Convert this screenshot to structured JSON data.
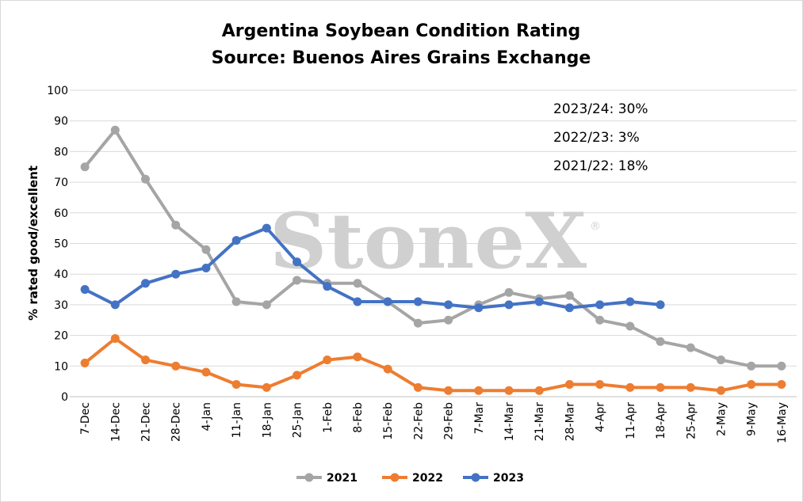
{
  "watermark": {
    "text": "StoneX",
    "mark": "®"
  },
  "annotations": [
    "2023/24: 30%",
    "2022/23: 3%",
    "2021/22: 18%"
  ],
  "chart_data": {
    "type": "line",
    "title": "Argentina Soybean Condition Rating",
    "subtitle": "Source: Buenos Aires Grains Exchange",
    "xlabel": "",
    "ylabel": "% rated good/excellent",
    "ylim": [
      0,
      100
    ],
    "yticks": [
      0,
      10,
      20,
      30,
      40,
      50,
      60,
      70,
      80,
      90,
      100
    ],
    "grid": true,
    "legend": "bottom",
    "categories": [
      "7-Dec",
      "14-Dec",
      "21-Dec",
      "28-Dec",
      "4-Jan",
      "11-Jan",
      "18-Jan",
      "25-Jan",
      "1-Feb",
      "8-Feb",
      "15-Feb",
      "22-Feb",
      "29-Feb",
      "7-Mar",
      "14-Mar",
      "21-Mar",
      "28-Mar",
      "4-Apr",
      "11-Apr",
      "18-Apr",
      "25-Apr",
      "2-May",
      "9-May",
      "16-May"
    ],
    "series": [
      {
        "name": "2021",
        "color": "#a5a5a5",
        "values": [
          75,
          87,
          71,
          56,
          48,
          31,
          30,
          38,
          37,
          37,
          31,
          24,
          25,
          30,
          34,
          32,
          33,
          25,
          23,
          18,
          16,
          12,
          10,
          10
        ]
      },
      {
        "name": "2022",
        "color": "#ed7d31",
        "values": [
          11,
          19,
          12,
          10,
          8,
          4,
          3,
          7,
          12,
          13,
          9,
          3,
          2,
          2,
          2,
          2,
          4,
          4,
          3,
          3,
          3,
          2,
          4,
          4
        ]
      },
      {
        "name": "2023",
        "color": "#4472c4",
        "values": [
          35,
          30,
          37,
          40,
          42,
          51,
          55,
          44,
          36,
          31,
          31,
          31,
          30,
          29,
          30,
          31,
          29,
          30,
          31,
          30,
          null,
          null,
          null,
          null
        ]
      }
    ]
  }
}
